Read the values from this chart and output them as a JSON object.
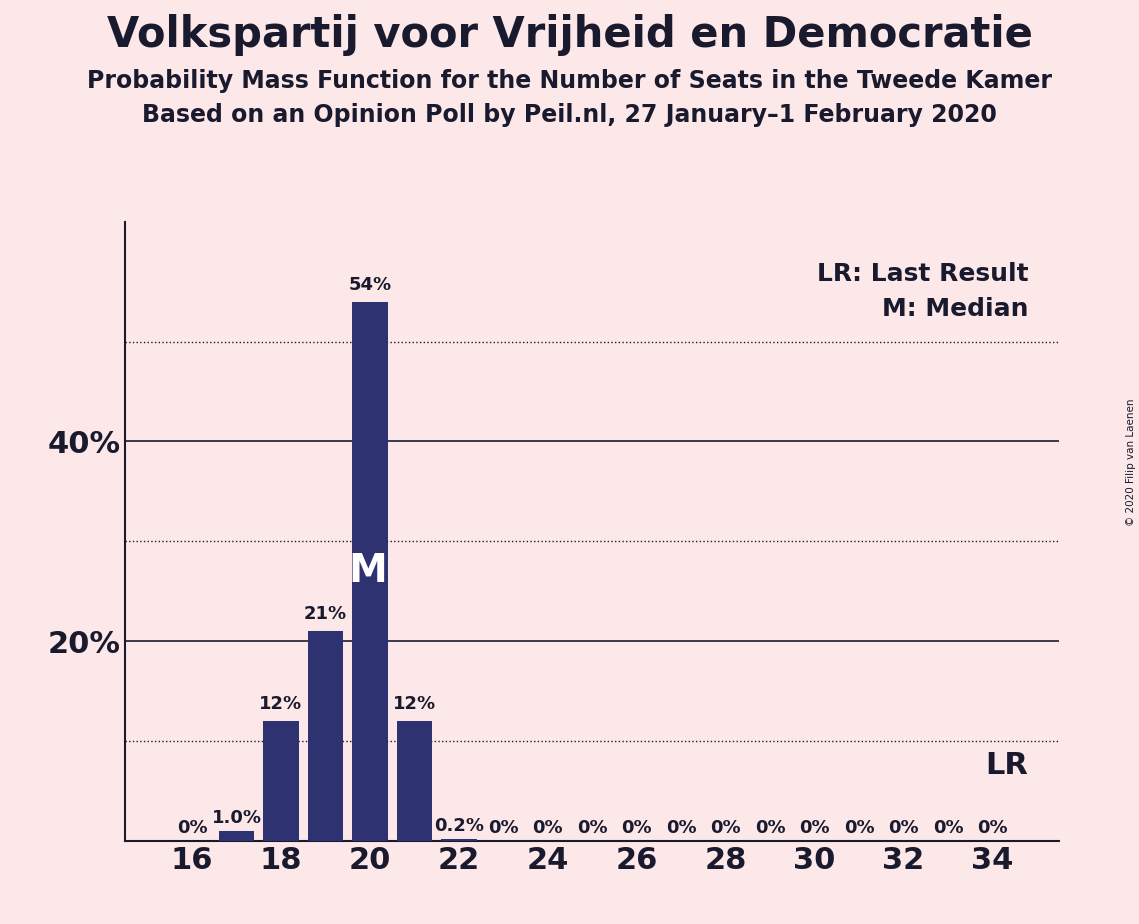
{
  "title": "Volkspartij voor Vrijheid en Democratie",
  "subtitle1": "Probability Mass Function for the Number of Seats in the Tweede Kamer",
  "subtitle2": "Based on an Opinion Poll by Peil.nl, 27 January–1 February 2020",
  "copyright": "© 2020 Filip van Laenen",
  "seats": [
    16,
    17,
    18,
    19,
    20,
    21,
    22,
    23,
    24,
    25,
    26,
    27,
    28,
    29,
    30,
    31,
    32,
    33,
    34
  ],
  "probabilities": [
    0.0,
    1.0,
    12.0,
    21.0,
    54.0,
    12.0,
    0.2,
    0.0,
    0.0,
    0.0,
    0.0,
    0.0,
    0.0,
    0.0,
    0.0,
    0.0,
    0.0,
    0.0,
    0.0
  ],
  "bar_labels": [
    "0%",
    "1.0%",
    "12%",
    "21%",
    "54%",
    "12%",
    "0.2%",
    "0%",
    "0%",
    "0%",
    "0%",
    "0%",
    "0%",
    "0%",
    "0%",
    "0%",
    "0%",
    "0%",
    "0%"
  ],
  "bar_color": "#2e3270",
  "background_color": "#fce8e8",
  "text_color": "#1a1a2e",
  "median_seat": 20,
  "lr_seat": 33,
  "legend_lr": "LR: Last Result",
  "legend_m": "M: Median",
  "lr_text": "LR",
  "median_text": "M",
  "yticks": [
    0,
    10,
    20,
    30,
    40,
    50,
    60
  ],
  "ytick_labels": [
    "",
    "",
    "20%",
    "",
    "40%",
    "",
    ""
  ],
  "ylim": [
    0,
    62
  ],
  "xlim": [
    14.5,
    35.5
  ],
  "xlabel_ticks": [
    16,
    18,
    20,
    22,
    24,
    26,
    28,
    30,
    32,
    34
  ],
  "solid_gridlines": [
    20,
    40
  ],
  "dotted_gridlines": [
    10,
    30,
    50
  ],
  "title_fontsize": 30,
  "subtitle_fontsize": 17,
  "axis_tick_fontsize": 22,
  "bar_label_fontsize": 13,
  "legend_fontsize": 18,
  "lr_text_fontsize": 22,
  "median_text_fontsize": 28
}
